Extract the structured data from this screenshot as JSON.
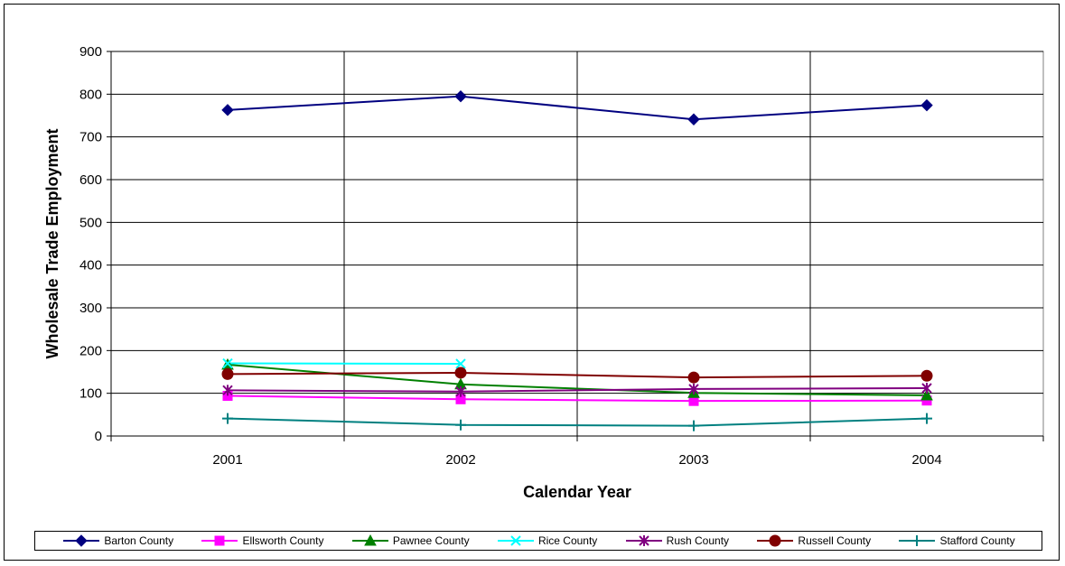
{
  "chart_data": {
    "type": "line",
    "xlabel": "Calendar Year",
    "ylabel": "Wholesale Trade Employment",
    "categories": [
      "2001",
      "2002",
      "2003",
      "2004"
    ],
    "ylim": [
      0,
      900
    ],
    "yticks": [
      0,
      100,
      200,
      300,
      400,
      500,
      600,
      700,
      800,
      900
    ],
    "grid": true,
    "legend_position": "bottom",
    "series": [
      {
        "name": "Barton County",
        "values": [
          763,
          795,
          741,
          774
        ],
        "color": "#000080",
        "marker": "diamond"
      },
      {
        "name": "Ellsworth County",
        "values": [
          94,
          86,
          82,
          83
        ],
        "color": "#FF00FF",
        "marker": "square"
      },
      {
        "name": "Pawnee County",
        "values": [
          167,
          121,
          101,
          95
        ],
        "color": "#008000",
        "marker": "triangle"
      },
      {
        "name": "Rice County",
        "values": [
          170,
          169,
          null,
          null
        ],
        "color": "#00FFFF",
        "marker": "x"
      },
      {
        "name": "Rush County",
        "values": [
          107,
          104,
          110,
          112
        ],
        "color": "#800080",
        "marker": "star"
      },
      {
        "name": "Russell County",
        "values": [
          145,
          148,
          137,
          141
        ],
        "color": "#800000",
        "marker": "circle"
      },
      {
        "name": "Stafford County",
        "values": [
          41,
          26,
          24,
          41
        ],
        "color": "#008080",
        "marker": "plus"
      }
    ]
  }
}
